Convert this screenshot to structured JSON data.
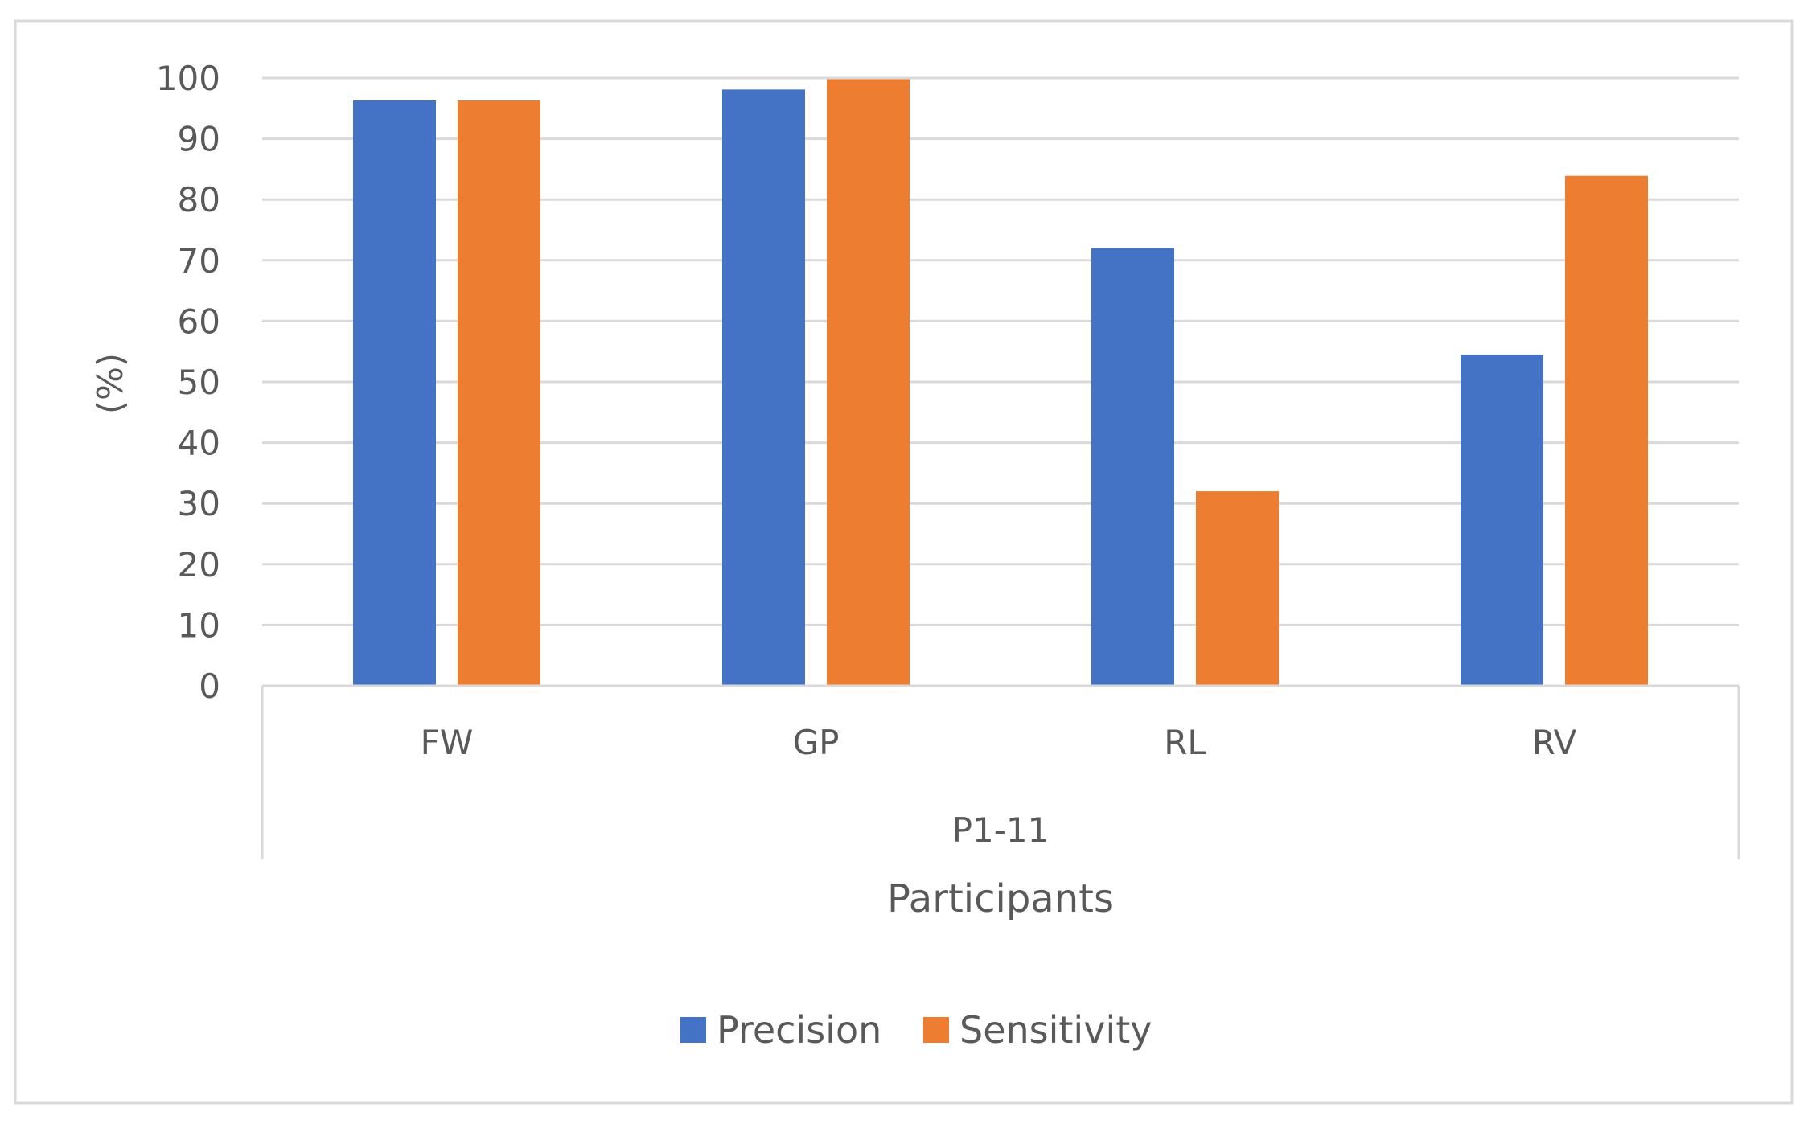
{
  "chart_data": {
    "type": "bar",
    "categories": [
      "FW",
      "GP",
      "RL",
      "RV"
    ],
    "group_label": "P1-11",
    "series": [
      {
        "name": "Precision",
        "values": [
          96.3,
          98.1,
          72.0,
          54.5
        ],
        "color": "#4472C4"
      },
      {
        "name": "Sensitivity",
        "values": [
          96.3,
          99.8,
          32.0,
          83.9
        ],
        "color": "#ED7D31"
      }
    ],
    "title": "",
    "xlabel": "Participants",
    "ylabel": "(%)",
    "ylim": [
      0,
      100
    ],
    "yticks": [
      0,
      10,
      20,
      30,
      40,
      50,
      60,
      70,
      80,
      90,
      100
    ],
    "grid": true,
    "legend": "bottom"
  }
}
